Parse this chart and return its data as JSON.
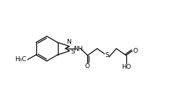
{
  "background_color": "#ffffff",
  "line_color": "#000000",
  "line_width": 0.9,
  "font_size": 6.5,
  "figsize": [
    2.68,
    1.44
  ],
  "dpi": 100,
  "xlim": [
    0,
    268
  ],
  "ylim": [
    0,
    144
  ]
}
